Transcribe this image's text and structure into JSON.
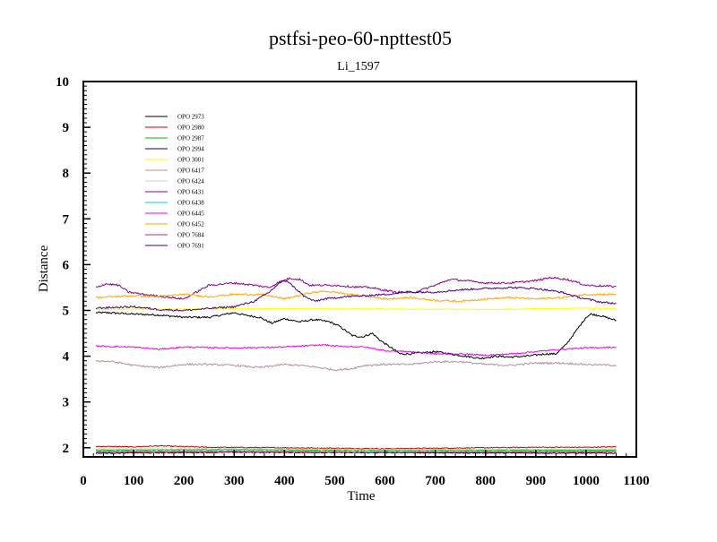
{
  "chart_data": {
    "type": "line",
    "title": "pstfsi-peo-60-npttest05",
    "subtitle": "Li_1597",
    "xlabel": "Time",
    "ylabel": "Distance",
    "xlim": [
      0,
      1100
    ],
    "ylim": [
      1.8,
      10
    ],
    "xticks": [
      0,
      100,
      200,
      300,
      400,
      500,
      600,
      700,
      800,
      900,
      1000,
      1100
    ],
    "xtick_labels": [
      "0",
      "100",
      "200",
      "300",
      "400",
      "500",
      "600",
      "700",
      "800",
      "900",
      "1000",
      "1100"
    ],
    "yticks": [
      2,
      3,
      4,
      5,
      6,
      7,
      8,
      9,
      10
    ],
    "ytick_labels": [
      "2",
      "3",
      "4",
      "5",
      "6",
      "7",
      "8",
      "9",
      "10"
    ],
    "grid": false,
    "legend_position": "top-left",
    "series": [
      {
        "name": "OPO 2973",
        "color": "#000000",
        "noise": 0.02,
        "points": [
          [
            25,
            4.95
          ],
          [
            50,
            4.95
          ],
          [
            100,
            4.92
          ],
          [
            150,
            4.9
          ],
          [
            200,
            4.85
          ],
          [
            250,
            4.85
          ],
          [
            300,
            4.95
          ],
          [
            320,
            4.9
          ],
          [
            350,
            4.85
          ],
          [
            375,
            4.72
          ],
          [
            400,
            4.82
          ],
          [
            430,
            4.75
          ],
          [
            460,
            4.8
          ],
          [
            490,
            4.75
          ],
          [
            510,
            4.65
          ],
          [
            535,
            4.45
          ],
          [
            555,
            4.42
          ],
          [
            575,
            4.5
          ],
          [
            590,
            4.35
          ],
          [
            610,
            4.2
          ],
          [
            630,
            4.05
          ],
          [
            650,
            4.05
          ],
          [
            680,
            4.08
          ],
          [
            700,
            4.1
          ],
          [
            730,
            4.05
          ],
          [
            760,
            4.0
          ],
          [
            790,
            3.95
          ],
          [
            820,
            4.0
          ],
          [
            850,
            3.98
          ],
          [
            880,
            4.0
          ],
          [
            920,
            4.05
          ],
          [
            940,
            4.05
          ],
          [
            960,
            4.25
          ],
          [
            980,
            4.55
          ],
          [
            1000,
            4.85
          ],
          [
            1010,
            4.92
          ],
          [
            1030,
            4.88
          ],
          [
            1060,
            4.78
          ]
        ]
      },
      {
        "name": "OPO 2980",
        "color": "#cc0000",
        "noise": 0.01,
        "points": [
          [
            25,
            2.03
          ],
          [
            100,
            2.02
          ],
          [
            150,
            2.04
          ],
          [
            250,
            2.01
          ],
          [
            400,
            2.0
          ],
          [
            500,
            1.99
          ],
          [
            600,
            1.98
          ],
          [
            700,
            1.99
          ],
          [
            800,
            2.0
          ],
          [
            900,
            2.01
          ],
          [
            1000,
            2.01
          ],
          [
            1060,
            2.02
          ]
        ]
      },
      {
        "name": "OPO 2987",
        "color": "#00bb00",
        "noise": 0.01,
        "points": [
          [
            25,
            1.95
          ],
          [
            300,
            1.96
          ],
          [
            600,
            1.94
          ],
          [
            1060,
            1.95
          ]
        ]
      },
      {
        "name": "OPO 2994",
        "color": "#000088",
        "noise": 0.01,
        "points": [
          [
            25,
            1.88
          ],
          [
            300,
            1.9
          ],
          [
            600,
            1.89
          ],
          [
            1060,
            1.88
          ]
        ]
      },
      {
        "name": "OPO 3001",
        "color": "#ffff00",
        "noise": 0.01,
        "points": [
          [
            25,
            5.02
          ],
          [
            200,
            5.03
          ],
          [
            400,
            5.04
          ],
          [
            600,
            5.03
          ],
          [
            800,
            5.02
          ],
          [
            1000,
            5.05
          ],
          [
            1060,
            5.03
          ]
        ]
      },
      {
        "name": "OPO 6417",
        "color": "#bc8f8f",
        "noise": 0.02,
        "points": [
          [
            25,
            3.9
          ],
          [
            60,
            3.88
          ],
          [
            100,
            3.8
          ],
          [
            150,
            3.75
          ],
          [
            200,
            3.82
          ],
          [
            250,
            3.82
          ],
          [
            300,
            3.8
          ],
          [
            350,
            3.75
          ],
          [
            400,
            3.82
          ],
          [
            450,
            3.78
          ],
          [
            500,
            3.7
          ],
          [
            530,
            3.72
          ],
          [
            560,
            3.8
          ],
          [
            600,
            3.82
          ],
          [
            650,
            3.82
          ],
          [
            700,
            3.88
          ],
          [
            750,
            3.88
          ],
          [
            800,
            3.82
          ],
          [
            850,
            3.8
          ],
          [
            900,
            3.85
          ],
          [
            950,
            3.85
          ],
          [
            1000,
            3.82
          ],
          [
            1060,
            3.8
          ]
        ]
      },
      {
        "name": "OPO 6424",
        "color": "#cccccc",
        "noise": 0.01,
        "points": [
          [
            25,
            1.97
          ],
          [
            300,
            1.98
          ],
          [
            600,
            1.96
          ],
          [
            1060,
            1.97
          ]
        ]
      },
      {
        "name": "OPO 6431",
        "color": "#8b008b",
        "noise": 0.02,
        "points": [
          [
            25,
            5.5
          ],
          [
            45,
            5.58
          ],
          [
            70,
            5.55
          ],
          [
            90,
            5.4
          ],
          [
            120,
            5.35
          ],
          [
            160,
            5.3
          ],
          [
            200,
            5.25
          ],
          [
            250,
            5.55
          ],
          [
            300,
            5.6
          ],
          [
            340,
            5.55
          ],
          [
            370,
            5.5
          ],
          [
            390,
            5.62
          ],
          [
            410,
            5.7
          ],
          [
            430,
            5.68
          ],
          [
            450,
            5.55
          ],
          [
            500,
            5.55
          ],
          [
            530,
            5.52
          ],
          [
            570,
            5.5
          ],
          [
            620,
            5.4
          ],
          [
            660,
            5.4
          ],
          [
            700,
            5.55
          ],
          [
            730,
            5.68
          ],
          [
            760,
            5.65
          ],
          [
            800,
            5.6
          ],
          [
            850,
            5.6
          ],
          [
            900,
            5.65
          ],
          [
            930,
            5.72
          ],
          [
            960,
            5.68
          ],
          [
            980,
            5.62
          ],
          [
            1000,
            5.55
          ],
          [
            1060,
            5.52
          ]
        ]
      },
      {
        "name": "OPO 6438",
        "color": "#00cccc",
        "noise": 0.01,
        "points": [
          [
            25,
            1.92
          ],
          [
            300,
            1.93
          ],
          [
            600,
            1.91
          ],
          [
            1060,
            1.92
          ]
        ]
      },
      {
        "name": "OPO 6445",
        "color": "#ee00ee",
        "noise": 0.015,
        "points": [
          [
            25,
            4.22
          ],
          [
            100,
            4.2
          ],
          [
            150,
            4.15
          ],
          [
            200,
            4.2
          ],
          [
            300,
            4.18
          ],
          [
            400,
            4.2
          ],
          [
            480,
            4.25
          ],
          [
            500,
            4.22
          ],
          [
            560,
            4.2
          ],
          [
            600,
            4.12
          ],
          [
            650,
            4.1
          ],
          [
            700,
            4.05
          ],
          [
            750,
            4.05
          ],
          [
            800,
            4.02
          ],
          [
            850,
            4.05
          ],
          [
            900,
            4.1
          ],
          [
            950,
            4.15
          ],
          [
            1000,
            4.18
          ],
          [
            1060,
            4.2
          ]
        ]
      },
      {
        "name": "OPO 6452",
        "color": "#ffa500",
        "noise": 0.02,
        "points": [
          [
            25,
            5.28
          ],
          [
            100,
            5.32
          ],
          [
            150,
            5.3
          ],
          [
            200,
            5.35
          ],
          [
            250,
            5.3
          ],
          [
            300,
            5.35
          ],
          [
            350,
            5.35
          ],
          [
            380,
            5.3
          ],
          [
            400,
            5.25
          ],
          [
            450,
            5.38
          ],
          [
            480,
            5.42
          ],
          [
            500,
            5.4
          ],
          [
            530,
            5.35
          ],
          [
            570,
            5.3
          ],
          [
            600,
            5.25
          ],
          [
            650,
            5.28
          ],
          [
            700,
            5.22
          ],
          [
            750,
            5.2
          ],
          [
            800,
            5.25
          ],
          [
            850,
            5.28
          ],
          [
            900,
            5.25
          ],
          [
            950,
            5.28
          ],
          [
            1000,
            5.35
          ],
          [
            1060,
            5.35
          ]
        ]
      },
      {
        "name": "OPO 7684",
        "color": "#b03060",
        "noise": 0.01,
        "points": [
          [
            25,
            1.9
          ],
          [
            300,
            1.91
          ],
          [
            600,
            1.9
          ],
          [
            1060,
            1.91
          ]
        ]
      },
      {
        "name": "OPO 7691",
        "color": "#4b0082",
        "noise": 0.02,
        "points": [
          [
            25,
            5.05
          ],
          [
            100,
            5.08
          ],
          [
            150,
            5.02
          ],
          [
            200,
            5.0
          ],
          [
            260,
            5.05
          ],
          [
            300,
            5.08
          ],
          [
            340,
            5.2
          ],
          [
            370,
            5.4
          ],
          [
            390,
            5.6
          ],
          [
            405,
            5.65
          ],
          [
            420,
            5.5
          ],
          [
            440,
            5.3
          ],
          [
            460,
            5.2
          ],
          [
            480,
            5.25
          ],
          [
            520,
            5.3
          ],
          [
            560,
            5.32
          ],
          [
            600,
            5.35
          ],
          [
            650,
            5.4
          ],
          [
            700,
            5.4
          ],
          [
            750,
            5.45
          ],
          [
            800,
            5.48
          ],
          [
            850,
            5.5
          ],
          [
            900,
            5.48
          ],
          [
            950,
            5.4
          ],
          [
            980,
            5.3
          ],
          [
            1000,
            5.25
          ],
          [
            1030,
            5.18
          ],
          [
            1060,
            5.15
          ]
        ]
      }
    ]
  }
}
